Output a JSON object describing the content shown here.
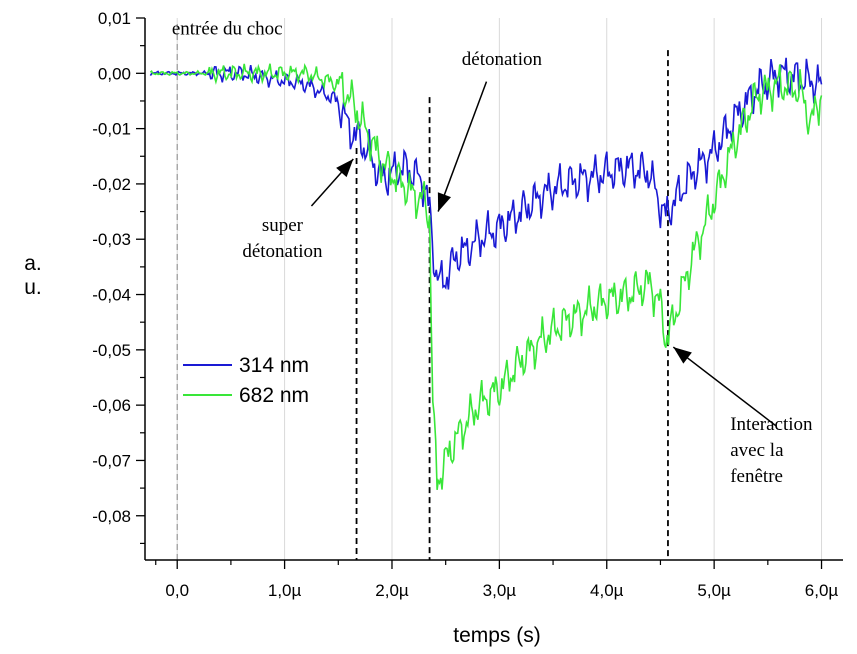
{
  "chart_data": {
    "type": "line",
    "xlabel": "temps (s)",
    "ylabel": "a. u.",
    "xlim": [
      -0.3,
      6.2
    ],
    "ylim": [
      -0.088,
      0.01
    ],
    "x_ticks": [
      {
        "value": 0,
        "label": "0,0"
      },
      {
        "value": 1,
        "label": "1,0µ"
      },
      {
        "value": 2,
        "label": "2,0µ"
      },
      {
        "value": 3,
        "label": "3,0µ"
      },
      {
        "value": 4,
        "label": "4,0µ"
      },
      {
        "value": 5,
        "label": "5,0µ"
      },
      {
        "value": 6,
        "label": "6,0µ"
      }
    ],
    "y_ticks": [
      {
        "value": 0.01,
        "label": "0,01"
      },
      {
        "value": 0.0,
        "label": "0,00"
      },
      {
        "value": -0.01,
        "label": "-0,01"
      },
      {
        "value": -0.02,
        "label": "-0,02"
      },
      {
        "value": -0.03,
        "label": "-0,03"
      },
      {
        "value": -0.04,
        "label": "-0,04"
      },
      {
        "value": -0.05,
        "label": "-0,05"
      },
      {
        "value": -0.06,
        "label": "-0,06"
      },
      {
        "value": -0.07,
        "label": "-0,07"
      },
      {
        "value": -0.08,
        "label": "-0,08"
      }
    ],
    "grid": "vertical",
    "legend_position": "lower-left",
    "series": [
      {
        "name": "314 nm",
        "color": "#1a1ad4",
        "x": [
          -0.25,
          0.0,
          0.3,
          0.6,
          0.9,
          1.2,
          1.5,
          1.6,
          1.7,
          1.8,
          1.9,
          2.0,
          2.1,
          2.2,
          2.3,
          2.35,
          2.4,
          2.45,
          2.5,
          2.6,
          2.7,
          2.8,
          3.0,
          3.2,
          3.4,
          3.6,
          3.8,
          4.0,
          4.2,
          4.4,
          4.5,
          4.55,
          4.6,
          4.8,
          5.0,
          5.2,
          5.4,
          5.6,
          5.8,
          6.0
        ],
        "y": [
          0.0,
          0.0,
          0.0,
          0.0,
          -0.001,
          -0.002,
          -0.005,
          -0.01,
          -0.012,
          -0.015,
          -0.019,
          -0.018,
          -0.017,
          -0.018,
          -0.02,
          -0.025,
          -0.035,
          -0.038,
          -0.037,
          -0.033,
          -0.032,
          -0.03,
          -0.028,
          -0.025,
          -0.022,
          -0.02,
          -0.019,
          -0.018,
          -0.017,
          -0.018,
          -0.024,
          -0.026,
          -0.024,
          -0.018,
          -0.014,
          -0.008,
          -0.003,
          0.0,
          -0.001,
          -0.002
        ]
      },
      {
        "name": "682 nm",
        "color": "#39e639",
        "x": [
          -0.25,
          0.0,
          0.3,
          0.6,
          0.9,
          1.2,
          1.5,
          1.6,
          1.7,
          1.8,
          1.9,
          2.0,
          2.1,
          2.2,
          2.3,
          2.35,
          2.38,
          2.42,
          2.5,
          2.6,
          2.8,
          3.0,
          3.2,
          3.4,
          3.6,
          3.8,
          4.0,
          4.2,
          4.4,
          4.5,
          4.55,
          4.6,
          4.8,
          5.0,
          5.2,
          5.4,
          5.6,
          5.8,
          5.9,
          6.0
        ],
        "y": [
          0.0,
          0.0,
          0.0,
          0.0,
          0.0,
          0.0,
          -0.002,
          -0.004,
          -0.008,
          -0.012,
          -0.016,
          -0.018,
          -0.02,
          -0.022,
          -0.023,
          -0.026,
          -0.06,
          -0.074,
          -0.07,
          -0.066,
          -0.06,
          -0.057,
          -0.052,
          -0.048,
          -0.045,
          -0.043,
          -0.041,
          -0.04,
          -0.038,
          -0.042,
          -0.048,
          -0.046,
          -0.033,
          -0.023,
          -0.012,
          -0.004,
          -0.002,
          -0.003,
          -0.009,
          -0.004
        ]
      }
    ],
    "reference_lines": [
      {
        "x": 0.0,
        "style": "dashed-gray"
      },
      {
        "x": 1.67,
        "style": "dashed"
      },
      {
        "x": 2.35,
        "style": "dashed"
      },
      {
        "x": 4.57,
        "style": "dashed"
      }
    ],
    "annotations": [
      {
        "lines": [
          "entrée du choc"
        ],
        "x": -0.05,
        "y": 0.007,
        "anchor": "start"
      },
      {
        "lines": [
          "détonation"
        ],
        "x": 2.65,
        "y": 0.0015,
        "anchor": "start"
      },
      {
        "lines": [
          "super",
          "détonation"
        ],
        "x": 0.98,
        "y": -0.0285,
        "anchor": "middle"
      },
      {
        "lines": [
          "Interaction",
          "avec la",
          "fenêtre"
        ],
        "x": 5.15,
        "y": -0.0645,
        "anchor": "start"
      }
    ],
    "arrows": [
      {
        "from": [
          1.25,
          -0.024
        ],
        "to": [
          1.64,
          -0.0155
        ]
      },
      {
        "from": [
          2.88,
          -0.0015
        ],
        "to": [
          2.43,
          -0.025
        ]
      },
      {
        "from": [
          5.58,
          -0.0638
        ],
        "to": [
          4.62,
          -0.0495
        ]
      }
    ]
  }
}
